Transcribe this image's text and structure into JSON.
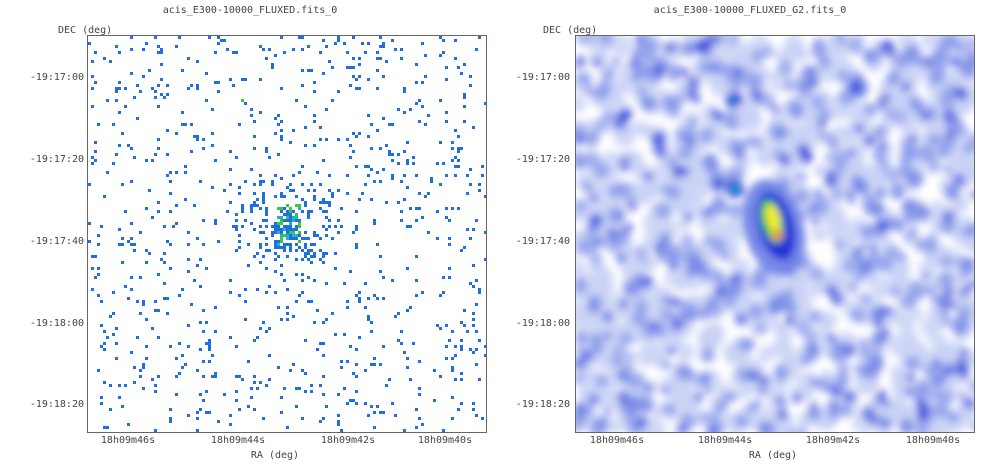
{
  "panels": [
    {
      "title": "acis_E300-10000_FLUXED.fits_0",
      "y_axis_label": "DEC (deg)",
      "x_axis_label": "RA (deg)",
      "y_ticks": [
        "-19:17:00",
        "-19:17:20",
        "-19:17:40",
        "-19:18:00",
        "-19:18:20"
      ],
      "x_ticks": [
        "18h09m46s",
        "18h09m44s",
        "18h09m42s",
        "18h09m40s"
      ],
      "image_style": "sparse-pixels"
    },
    {
      "title": "acis_E300-10000_FLUXED_G2.fits_0",
      "y_axis_label": "DEC (deg)",
      "x_axis_label": "RA (deg)",
      "y_ticks": [
        "-19:17:00",
        "-19:17:20",
        "-19:17:40",
        "-19:18:00",
        "-19:18:20"
      ],
      "x_ticks": [
        "18h09m46s",
        "18h09m44s",
        "18h09m42s",
        "18h09m40s"
      ],
      "image_style": "gaussian-smoothed"
    }
  ],
  "colors": {
    "pixel_blue": "#1f6fe0",
    "smooth_light": "#c9d2f5",
    "smooth_mid": "#6b7fe6",
    "smooth_dark": "#1e2fd6",
    "source_green": "#3cc83c",
    "source_yellow": "#f2ee2a",
    "source_red": "#e03a1c"
  }
}
